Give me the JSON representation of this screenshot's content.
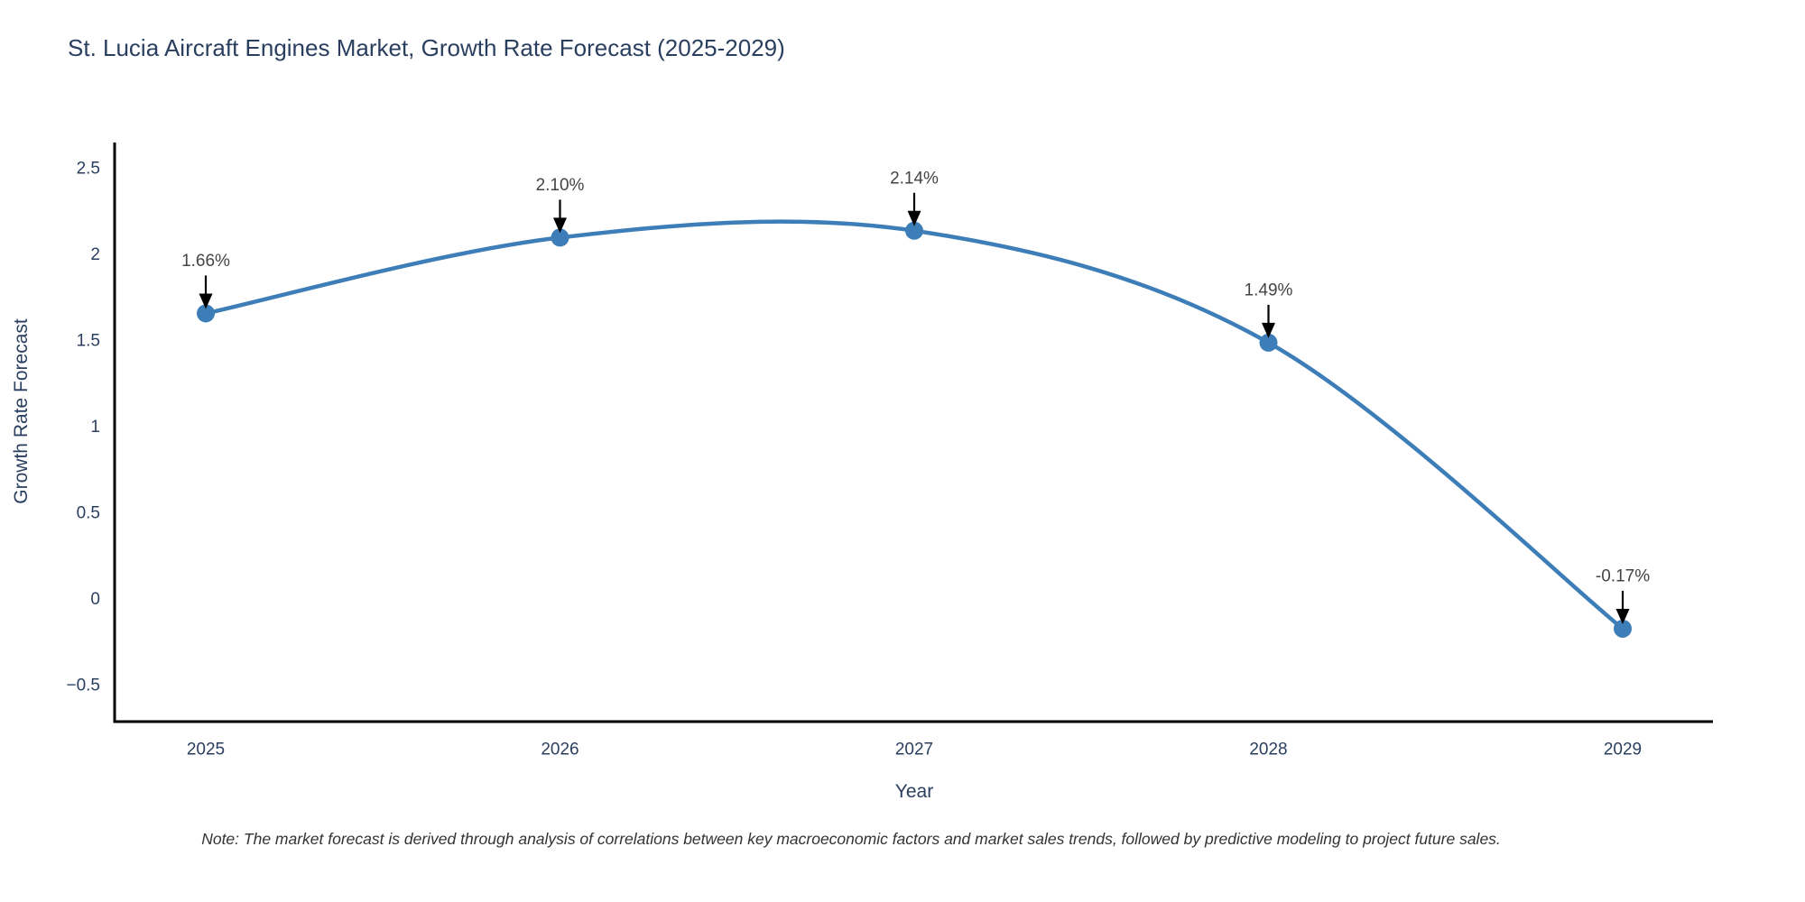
{
  "page": {
    "background": "#ffffff"
  },
  "chart_data": {
    "type": "line",
    "title": "St. Lucia Aircraft Engines Market, Growth Rate Forecast (2025-2029)",
    "xlabel": "Year",
    "ylabel": "Growth Rate Forecast",
    "categories": [
      "2025",
      "2026",
      "2027",
      "2028",
      "2029"
    ],
    "values": [
      1.66,
      2.1,
      2.14,
      1.49,
      -0.17
    ],
    "point_labels": [
      "1.66%",
      "2.10%",
      "2.14%",
      "1.49%",
      "-0.17%"
    ],
    "yticks": [
      -0.5,
      0,
      0.5,
      1,
      1.5,
      2,
      2.5
    ],
    "ytick_labels": [
      "−0.5",
      "0",
      "0.5",
      "1",
      "1.5",
      "2",
      "2.5"
    ],
    "ylim": [
      -0.71,
      2.65
    ],
    "line_shape": "spline",
    "grid": false,
    "legend_position": "none",
    "line_color": "#3d7eb8",
    "marker_color": "#3d7eb8",
    "axis_line_color": "#000000",
    "tick_label_color": "#2a3f5f",
    "annotation_text_color": "#444444",
    "annotation_arrow_color": "#000000",
    "note": "Note: The market forecast is derived through analysis of correlations between key macroeconomic factors and market sales trends, followed by predictive modeling to project future sales."
  }
}
